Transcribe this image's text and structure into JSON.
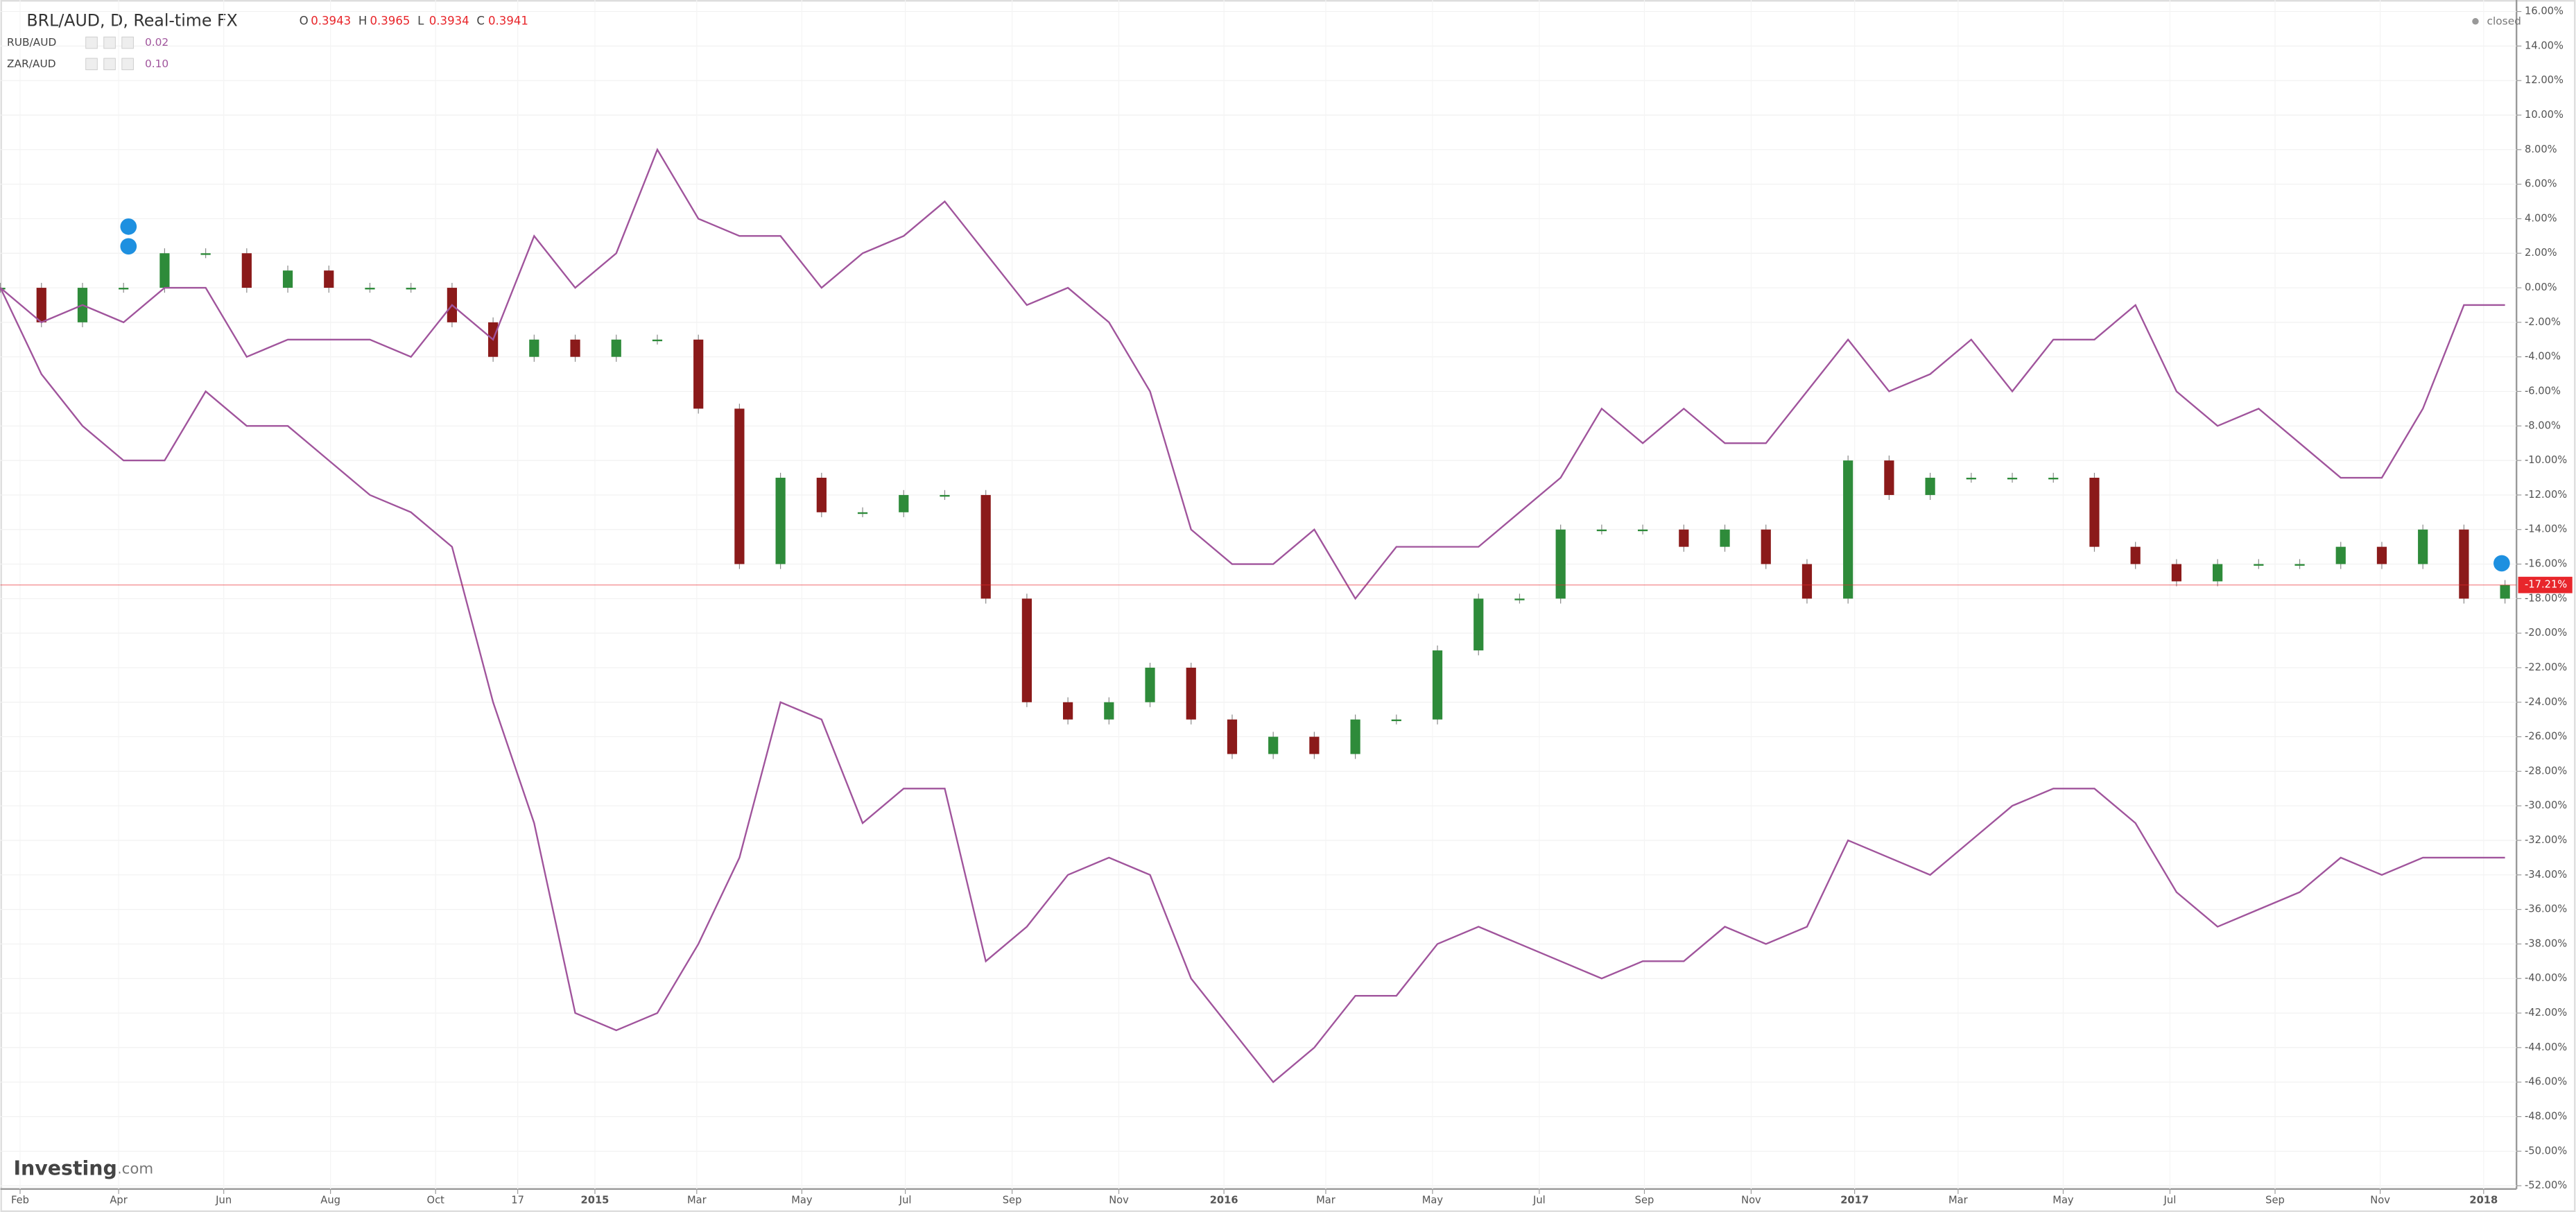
{
  "chart_data": {
    "type": "line",
    "title": "BRL/AUD, D, Real-time FX",
    "ohlc": [
      {
        "label": "O",
        "value": "0.3943"
      },
      {
        "label": "H",
        "value": "0.3965"
      },
      {
        "label": "L",
        "value": "0.3934"
      },
      {
        "label": "C",
        "value": "0.3941"
      }
    ],
    "status": "closed",
    "watermark": "Investing",
    "watermark_suffix": ".com",
    "last_value_label": "-17.21%",
    "last_value_color": "#e8262b",
    "grid": true,
    "ylim": [
      -52,
      16
    ],
    "yticks": [
      {
        "value": 16,
        "label": "16.00%"
      },
      {
        "value": 14,
        "label": "14.00%"
      },
      {
        "value": 12,
        "label": "12.00%"
      },
      {
        "value": 10,
        "label": "10.00%"
      },
      {
        "value": 8,
        "label": "8.00%"
      },
      {
        "value": 6,
        "label": "6.00%"
      },
      {
        "value": 4,
        "label": "4.00%"
      },
      {
        "value": 2,
        "label": "2.00%"
      },
      {
        "value": 0,
        "label": "0.00%"
      },
      {
        "value": -2,
        "label": "-2.00%"
      },
      {
        "value": -4,
        "label": "-4.00%"
      },
      {
        "value": -6,
        "label": "-6.00%"
      },
      {
        "value": -8,
        "label": "-8.00%"
      },
      {
        "value": -10,
        "label": "-10.00%"
      },
      {
        "value": -12,
        "label": "-12.00%"
      },
      {
        "value": -14,
        "label": "-14.00%"
      },
      {
        "value": -16,
        "label": "-16.00%"
      },
      {
        "value": -18,
        "label": "-18.00%"
      },
      {
        "value": -20,
        "label": "-20.00%"
      },
      {
        "value": -22,
        "label": "-22.00%"
      },
      {
        "value": -24,
        "label": "-24.00%"
      },
      {
        "value": -26,
        "label": "-26.00%"
      },
      {
        "value": -28,
        "label": "-28.00%"
      },
      {
        "value": -30,
        "label": "-30.00%"
      },
      {
        "value": -32,
        "label": "-32.00%"
      },
      {
        "value": -34,
        "label": "-34.00%"
      },
      {
        "value": -36,
        "label": "-36.00%"
      },
      {
        "value": -38,
        "label": "-38.00%"
      },
      {
        "value": -40,
        "label": "-40.00%"
      },
      {
        "value": -42,
        "label": "-42.00%"
      },
      {
        "value": -44,
        "label": "-44.00%"
      },
      {
        "value": -46,
        "label": "-46.00%"
      },
      {
        "value": -48,
        "label": "-48.00%"
      },
      {
        "value": -50,
        "label": "-50.00%"
      },
      {
        "value": -52,
        "label": "-52.00%"
      }
    ],
    "xtick_labels": [
      "Feb",
      "Apr",
      "Jun",
      "Aug",
      "Oct",
      "17",
      "2015",
      "Mar",
      "May",
      "Jul",
      "Sep",
      "Nov",
      "2016",
      "Mar",
      "May",
      "Jul",
      "Sep",
      "Nov",
      "2017",
      "Mar",
      "May",
      "Jul",
      "Sep",
      "Nov",
      "2018"
    ],
    "series": [
      {
        "name": "BRL/AUD",
        "style": "candle",
        "up_color": "#2e8b3a",
        "down_color": "#8b1a1a",
        "values": [
          0,
          -2,
          0,
          0,
          2,
          2,
          0,
          1,
          0,
          0,
          0,
          -2,
          -4,
          -3,
          -4,
          -3,
          -3,
          -7,
          -16,
          -11,
          -13,
          -13,
          -12,
          -12,
          -18,
          -24,
          -25,
          -24,
          -22,
          -25,
          -27,
          -26,
          -27,
          -25,
          -25,
          -21,
          -18,
          -18,
          -14,
          -14,
          -14,
          -15,
          -14,
          -16,
          -18,
          -10,
          -12,
          -11,
          -11,
          -11,
          -11,
          -15,
          -16,
          -17,
          -16,
          -16,
          -16,
          -15,
          -16,
          -14,
          -18,
          -17.21
        ]
      },
      {
        "name": "RUB/AUD",
        "legend_value": "0.02",
        "color": "#a0549c",
        "values": [
          0,
          -5,
          -8,
          -10,
          -10,
          -6,
          -8,
          -8,
          -10,
          -12,
          -13,
          -15,
          -24,
          -31,
          -42,
          -43,
          -42,
          -38,
          -33,
          -24,
          -25,
          -31,
          -29,
          -29,
          -39,
          -37,
          -34,
          -33,
          -34,
          -40,
          -43,
          -46,
          -44,
          -41,
          -41,
          -38,
          -37,
          -38,
          -39,
          -40,
          -39,
          -39,
          -37,
          -38,
          -37,
          -32,
          -33,
          -34,
          -32,
          -30,
          -29,
          -29,
          -31,
          -35,
          -37,
          -36,
          -35,
          -33,
          -34,
          -33,
          -33,
          -33
        ]
      },
      {
        "name": "ZAR/AUD",
        "legend_value": "0.10",
        "color": "#a0549c",
        "values": [
          0,
          -2,
          -1,
          -2,
          0,
          0,
          -4,
          -3,
          -3,
          -3,
          -4,
          -1,
          -3,
          3,
          0,
          2,
          8,
          4,
          3,
          3,
          0,
          2,
          3,
          5,
          2,
          -1,
          0,
          -2,
          -6,
          -14,
          -16,
          -16,
          -14,
          -18,
          -15,
          -15,
          -15,
          -13,
          -11,
          -7,
          -9,
          -7,
          -9,
          -9,
          -6,
          -3,
          -6,
          -5,
          -3,
          -6,
          -3,
          -3,
          -1,
          -6,
          -8,
          -7,
          -9,
          -11,
          -11,
          -7,
          -1,
          -1
        ]
      }
    ]
  }
}
